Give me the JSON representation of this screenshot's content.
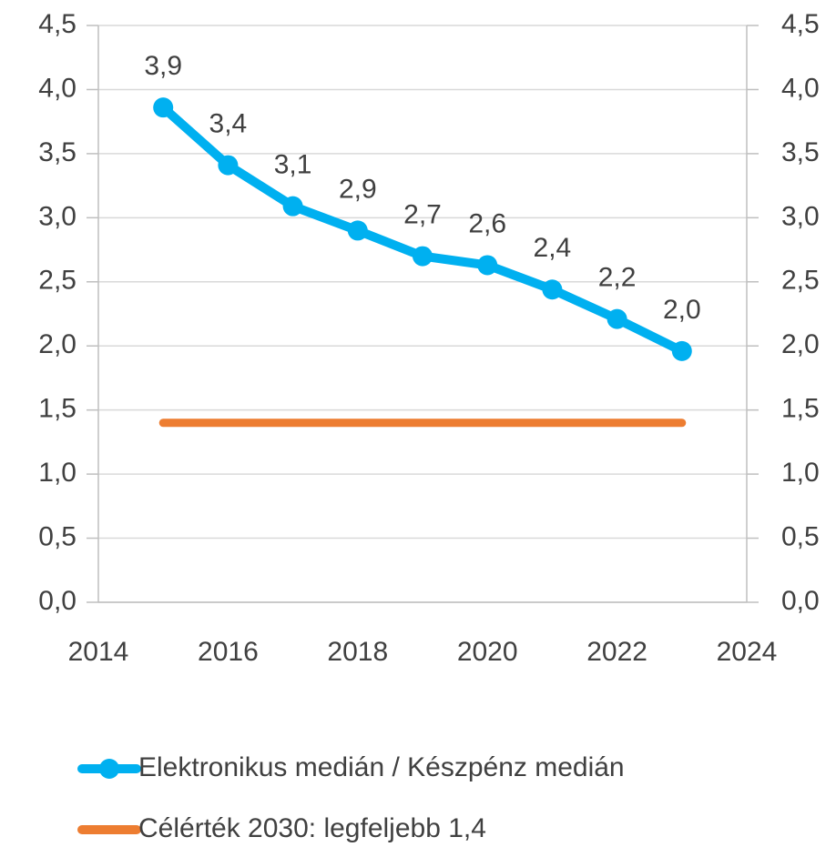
{
  "chart_data": {
    "type": "line",
    "x": [
      2015,
      2016,
      2017,
      2018,
      2019,
      2020,
      2021,
      2022,
      2023
    ],
    "series": [
      {
        "name": "Elektronikus medián / Készpénz medián",
        "color": "#00b0f0",
        "values": [
          3.86,
          3.41,
          3.09,
          2.9,
          2.7,
          2.63,
          2.44,
          2.21,
          1.96
        ],
        "value_labels": [
          "3,9",
          "3,4",
          "3,1",
          "2,9",
          "2,7",
          "2,6",
          "2,4",
          "2,2",
          "2,0"
        ],
        "markers": true
      },
      {
        "name": "Célérték 2030: legfeljebb 1,4",
        "color": "#ed7d31",
        "values": [
          1.4,
          1.4,
          1.4,
          1.4,
          1.4,
          1.4,
          1.4,
          1.4,
          1.4
        ],
        "markers": false
      }
    ],
    "xlim": [
      2014,
      2024
    ],
    "xticks": [
      2014,
      2016,
      2018,
      2020,
      2022,
      2024
    ],
    "ylim": [
      0,
      4.5
    ],
    "yticks": [
      {
        "value": 0,
        "label": "0,0"
      },
      {
        "value": 0.5,
        "label": "0,5"
      },
      {
        "value": 1,
        "label": "1,0"
      },
      {
        "value": 1.5,
        "label": "1,5"
      },
      {
        "value": 2,
        "label": "2,0"
      },
      {
        "value": 2.5,
        "label": "2,5"
      },
      {
        "value": 3,
        "label": "3,0"
      },
      {
        "value": 3.5,
        "label": "3,5"
      },
      {
        "value": 4,
        "label": "4,0"
      },
      {
        "value": 4.5,
        "label": "4,5"
      }
    ],
    "y2lim": [
      0,
      4.5
    ],
    "y2ticks": [
      {
        "value": 0,
        "label": "0,0"
      },
      {
        "value": 0.5,
        "label": "0,5"
      },
      {
        "value": 1,
        "label": "1,0"
      },
      {
        "value": 1.5,
        "label": "1,5"
      },
      {
        "value": 2,
        "label": "2,0"
      },
      {
        "value": 2.5,
        "label": "2,5"
      },
      {
        "value": 3,
        "label": "3,0"
      },
      {
        "value": 3.5,
        "label": "3,5"
      },
      {
        "value": 4,
        "label": "4,0"
      },
      {
        "value": 4.5,
        "label": "4,5"
      }
    ],
    "grid": true
  }
}
